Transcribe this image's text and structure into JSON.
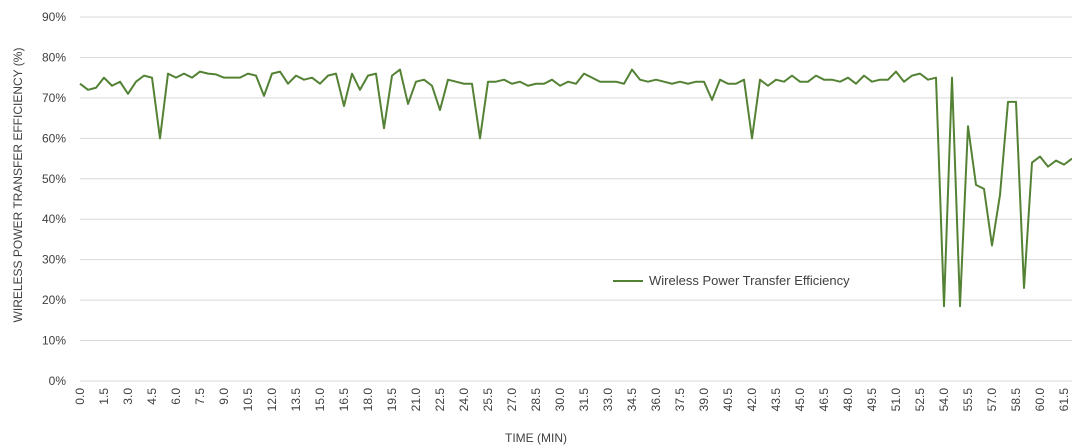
{
  "chart_data": {
    "type": "line",
    "xlabel": "TIME (MIN)",
    "ylabel": "WIRELESS POWER TRANSFER EFFICIENCY (%)",
    "x": [
      0,
      0.5,
      1,
      1.5,
      2,
      2.5,
      3,
      3.5,
      4,
      4.5,
      5,
      5.5,
      6,
      6.5,
      7,
      7.5,
      8,
      8.5,
      9,
      9.5,
      10,
      10.5,
      11,
      11.5,
      12,
      12.5,
      13,
      13.5,
      14,
      14.5,
      15,
      15.5,
      16,
      16.5,
      17,
      17.5,
      18,
      18.5,
      19,
      19.5,
      20,
      20.5,
      21,
      21.5,
      22,
      22.5,
      23,
      23.5,
      24,
      24.5,
      25,
      25.5,
      26,
      26.5,
      27,
      27.5,
      28,
      28.5,
      29,
      29.5,
      30,
      30.5,
      31,
      31.5,
      32,
      32.5,
      33,
      33.5,
      34,
      34.5,
      35,
      35.5,
      36,
      36.5,
      37,
      37.5,
      38,
      38.5,
      39,
      39.5,
      40,
      40.5,
      41,
      41.5,
      42,
      42.5,
      43,
      43.5,
      44,
      44.5,
      45,
      45.5,
      46,
      46.5,
      47,
      47.5,
      48,
      48.5,
      49,
      49.5,
      50,
      50.5,
      51,
      51.5,
      52,
      52.5,
      53,
      53.5,
      54,
      54.5,
      55,
      55.5,
      56,
      56.5,
      57,
      57.5,
      58,
      58.5,
      59,
      59.5,
      60,
      60.5,
      61,
      61.5,
      62
    ],
    "series": [
      {
        "name": "Wireless Power Transfer Efficiency",
        "color": "#548235",
        "values": [
          73.5,
          72,
          72.5,
          75,
          73,
          74,
          71,
          74,
          75.5,
          75,
          60,
          76,
          75,
          76,
          75,
          76.5,
          76,
          75.8,
          75,
          75,
          75,
          76,
          75.5,
          70.5,
          76,
          76.5,
          73.5,
          75.5,
          74.5,
          75,
          73.5,
          75.5,
          76,
          68,
          76,
          72,
          75.5,
          76,
          62.5,
          75.5,
          77,
          68.5,
          74,
          74.5,
          73,
          67,
          74.5,
          74,
          73.5,
          73.5,
          60,
          74,
          74,
          74.5,
          73.5,
          74,
          73,
          73.5,
          73.5,
          74.5,
          73,
          74,
          73.5,
          76,
          75,
          74,
          74,
          74,
          73.5,
          77,
          74.5,
          74,
          74.5,
          74,
          73.5,
          74,
          73.5,
          74,
          74,
          69.5,
          74.5,
          73.5,
          73.5,
          74.5,
          60,
          74.5,
          73,
          74.5,
          74,
          75.5,
          74,
          74,
          75.5,
          74.5,
          74.5,
          74,
          75,
          73.5,
          75.5,
          74,
          74.5,
          74.5,
          76.5,
          74,
          75.5,
          76,
          74.5,
          75,
          18.5,
          75,
          18.5,
          63,
          48.5,
          47.5,
          33.5,
          46,
          69,
          69,
          23,
          54,
          55.5,
          53,
          54.5,
          53.5,
          55
        ]
      }
    ],
    "xlim": [
      0,
      62
    ],
    "xticks": [
      {
        "value": 0,
        "label": "0.0"
      },
      1.5,
      {
        "value": 3,
        "label": "3.0"
      },
      4.5,
      {
        "value": 6,
        "label": "6.0"
      },
      7.5,
      {
        "value": 9,
        "label": "9.0"
      },
      10.5,
      {
        "value": 12,
        "label": "12.0"
      },
      13.5,
      {
        "value": 15,
        "label": "15.0"
      },
      16.5,
      {
        "value": 18,
        "label": "18.0"
      },
      19.5,
      {
        "value": 21,
        "label": "21.0"
      },
      22.5,
      {
        "value": 24,
        "label": "24.0"
      },
      25.5,
      {
        "value": 27,
        "label": "27.0"
      },
      28.5,
      {
        "value": 30,
        "label": "30.0"
      },
      31.5,
      {
        "value": 33,
        "label": "33.0"
      },
      34.5,
      {
        "value": 36,
        "label": "36.0"
      },
      37.5,
      {
        "value": 39,
        "label": "39.0"
      },
      40.5,
      {
        "value": 42,
        "label": "42.0"
      },
      43.5,
      {
        "value": 45,
        "label": "45.0"
      },
      46.5,
      {
        "value": 48,
        "label": "48.0"
      },
      49.5,
      {
        "value": 51,
        "label": "51.0"
      },
      52.5,
      {
        "value": 54,
        "label": "54.0"
      },
      55.5,
      {
        "value": 57,
        "label": "57.0"
      },
      58.5,
      {
        "value": 60,
        "label": "60.0"
      },
      61.5
    ],
    "ylim": [
      0,
      90
    ],
    "yticks": [
      {
        "value": 0,
        "label": "0%"
      },
      {
        "value": 10,
        "label": "10%"
      },
      {
        "value": 20,
        "label": "20%"
      },
      {
        "value": 30,
        "label": "30%"
      },
      {
        "value": 40,
        "label": "40%"
      },
      {
        "value": 50,
        "label": "50%"
      },
      {
        "value": 60,
        "label": "60%"
      },
      {
        "value": 70,
        "label": "70%"
      },
      {
        "value": 80,
        "label": "80%"
      },
      {
        "value": 90,
        "label": "90%"
      }
    ],
    "grid": true,
    "legend": "center"
  }
}
